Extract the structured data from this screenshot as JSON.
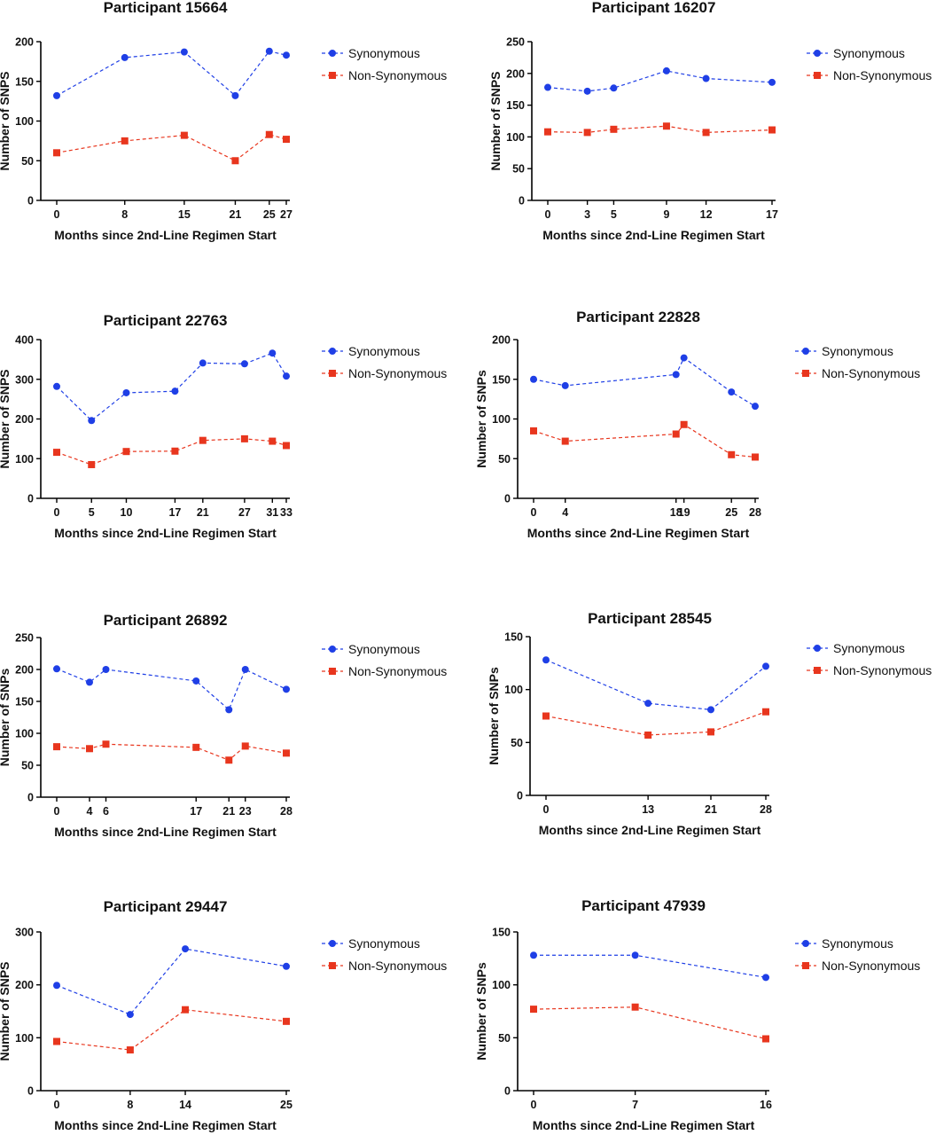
{
  "colors": {
    "synonymous": "#1f3fe6",
    "non_synonymous": "#e8361e",
    "axis": "#000000"
  },
  "chart_data": [
    {
      "type": "line",
      "title": "Participant 15664",
      "xlabel": "Months since 2nd-Line Regimen Start",
      "ylabel": "Number of SNPS",
      "x": [
        0,
        8,
        15,
        21,
        25,
        27
      ],
      "xticks": [
        "0",
        "8",
        "15",
        "21",
        "25",
        "27"
      ],
      "xlim": [
        0,
        27
      ],
      "ylim": [
        0,
        200
      ],
      "yticks": [
        "0",
        "50",
        "100",
        "150",
        "200"
      ],
      "series": [
        {
          "name": "Synonymous",
          "values": [
            132,
            180,
            187,
            132,
            188,
            183
          ]
        },
        {
          "name": "Non-Synonymous",
          "values": [
            60,
            75,
            82,
            50,
            83,
            77
          ]
        }
      ],
      "legend": "right",
      "grid": false
    },
    {
      "type": "line",
      "title": "Participant 16207",
      "xlabel": "Months since 2nd-Line Regimen Start",
      "ylabel": "Number of SNPS",
      "x": [
        0,
        3,
        5,
        9,
        12,
        17
      ],
      "xticks": [
        "0",
        "3",
        "5",
        "9",
        "12",
        "17"
      ],
      "xlim": [
        0,
        17
      ],
      "ylim": [
        0,
        250
      ],
      "yticks": [
        "0",
        "50",
        "100",
        "150",
        "200",
        "250"
      ],
      "series": [
        {
          "name": "Synonymous",
          "values": [
            178,
            172,
            177,
            204,
            192,
            186
          ]
        },
        {
          "name": "Non-Synonymous",
          "values": [
            108,
            107,
            112,
            117,
            107,
            111
          ]
        }
      ],
      "legend": "right",
      "grid": false
    },
    {
      "type": "line",
      "title": "Participant 22763",
      "xlabel": "Months since 2nd-Line Regimen Start",
      "ylabel": "Number of SNPS",
      "x": [
        0,
        5,
        10,
        17,
        21,
        27,
        31,
        33
      ],
      "xticks": [
        "0",
        "5",
        "10",
        "17",
        "21",
        "27",
        "31",
        "33"
      ],
      "xlim": [
        0,
        33
      ],
      "ylim": [
        0,
        400
      ],
      "yticks": [
        "0",
        "100",
        "200",
        "300",
        "400"
      ],
      "series": [
        {
          "name": "Synonymous",
          "values": [
            282,
            196,
            266,
            270,
            341,
            339,
            366,
            308
          ]
        },
        {
          "name": "Non-Synonymous",
          "values": [
            116,
            85,
            118,
            119,
            146,
            150,
            144,
            133
          ]
        }
      ],
      "legend": "right",
      "grid": false
    },
    {
      "type": "line",
      "title": "Participant 22828",
      "xlabel": "Months since 2nd-Line Regimen Start",
      "ylabel": "Number of SNPs",
      "x": [
        0,
        4,
        18,
        19,
        25,
        28
      ],
      "xticks": [
        "0",
        "4",
        "18",
        "19",
        "25",
        "28"
      ],
      "xlim": [
        0,
        28
      ],
      "ylim": [
        0,
        200
      ],
      "yticks": [
        "0",
        "50",
        "100",
        "150",
        "200"
      ],
      "series": [
        {
          "name": "Synonymous",
          "values": [
            150,
            142,
            156,
            177,
            134,
            116
          ]
        },
        {
          "name": "Non-Synonymous",
          "values": [
            85,
            72,
            81,
            93,
            55,
            52
          ]
        }
      ],
      "legend": "right",
      "grid": false
    },
    {
      "type": "line",
      "title": "Participant 26892",
      "xlabel": "Months since 2nd-Line Regimen Start",
      "ylabel": "Number of SNPs",
      "x": [
        0,
        4,
        6,
        17,
        21,
        23,
        28
      ],
      "xticks": [
        "0",
        "4",
        "6",
        "17",
        "21",
        "23",
        "28"
      ],
      "xlim": [
        0,
        28
      ],
      "ylim": [
        0,
        250
      ],
      "yticks": [
        "0",
        "50",
        "100",
        "150",
        "200",
        "250"
      ],
      "series": [
        {
          "name": "Synonymous",
          "values": [
            201,
            180,
            200,
            182,
            137,
            200,
            169
          ]
        },
        {
          "name": "Non-Synonymous",
          "values": [
            79,
            76,
            83,
            78,
            58,
            80,
            69
          ]
        }
      ],
      "legend": "right",
      "grid": false
    },
    {
      "type": "line",
      "title": "Participant 28545",
      "xlabel": "Months since 2nd-Line Regimen Start",
      "ylabel": "Number of SNPs",
      "x": [
        0,
        13,
        21,
        28
      ],
      "xticks": [
        "0",
        "13",
        "21",
        "28"
      ],
      "xlim": [
        0,
        28
      ],
      "ylim": [
        0,
        150
      ],
      "yticks": [
        "0",
        "50",
        "100",
        "150"
      ],
      "series": [
        {
          "name": "Synonymous",
          "values": [
            128,
            87,
            81,
            122
          ]
        },
        {
          "name": "Non-Synonymous",
          "values": [
            75,
            57,
            60,
            79
          ]
        }
      ],
      "legend": "right",
      "grid": false
    },
    {
      "type": "line",
      "title": "Participant 29447",
      "xlabel": "Months since 2nd-Line Regimen Start",
      "ylabel": "Number of SNPS",
      "x": [
        0,
        8,
        14,
        25
      ],
      "xticks": [
        "0",
        "8",
        "14",
        "25"
      ],
      "xlim": [
        0,
        25
      ],
      "ylim": [
        0,
        300
      ],
      "yticks": [
        "0",
        "100",
        "200",
        "300"
      ],
      "series": [
        {
          "name": "Synonymous",
          "values": [
            199,
            144,
            268,
            235
          ]
        },
        {
          "name": "Non-Synonymous",
          "values": [
            93,
            77,
            153,
            131
          ]
        }
      ],
      "legend": "right",
      "grid": false
    },
    {
      "type": "line",
      "title": "Participant 47939",
      "xlabel": "Months since 2nd-Line Regimen Start",
      "ylabel": "Number of SNPs",
      "x": [
        0,
        7,
        16
      ],
      "xticks": [
        "0",
        "7",
        "16"
      ],
      "xlim": [
        0,
        16
      ],
      "ylim": [
        0,
        150
      ],
      "yticks": [
        "0",
        "50",
        "100",
        "150"
      ],
      "series": [
        {
          "name": "Synonymous",
          "values": [
            128,
            128,
            107
          ]
        },
        {
          "name": "Non-Synonymous",
          "values": [
            77,
            79,
            49
          ]
        }
      ],
      "legend": "right",
      "grid": false
    }
  ]
}
